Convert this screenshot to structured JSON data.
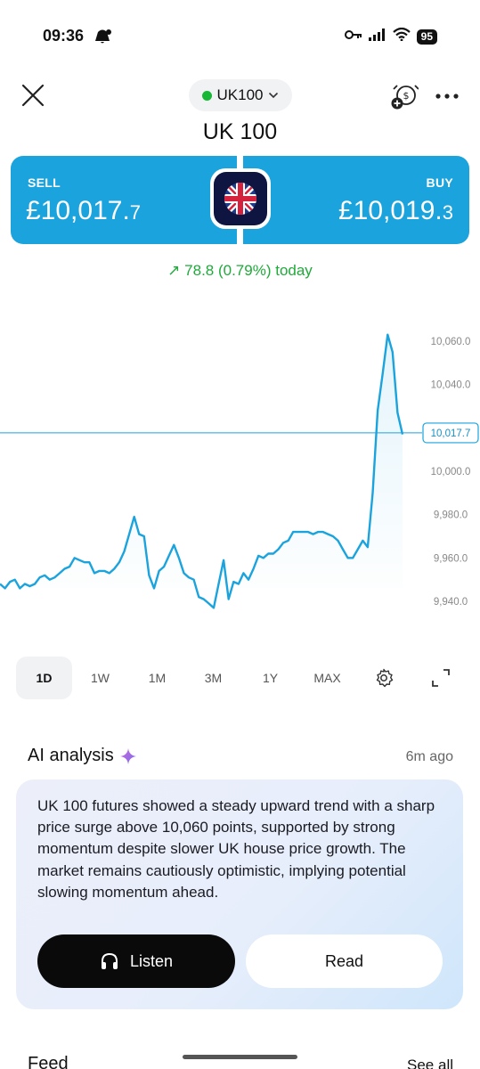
{
  "status_bar": {
    "time": "09:36",
    "battery": "95"
  },
  "header": {
    "ticker": "UK100",
    "title": "UK 100"
  },
  "trade": {
    "sell_label": "SELL",
    "sell_price_main": "£10,017.",
    "sell_price_small": "7",
    "buy_label": "BUY",
    "buy_price_main": "£10,019.",
    "buy_price_small": "3"
  },
  "change": {
    "arrow": "↗",
    "text": "78.8 (0.79%) today"
  },
  "chart_data": {
    "type": "line",
    "y_ticks": [
      "10,060.0",
      "10,040.0",
      "10,000.0",
      "9,980.0",
      "9,960.0",
      "9,940.0"
    ],
    "y_tick_values": [
      10060,
      10040,
      10000,
      9980,
      9960,
      9940
    ],
    "current_value": 10017.7,
    "current_label": "10,017.7",
    "values": [
      9948,
      9946,
      9949,
      9950,
      9946,
      9948,
      9947,
      9948,
      9951,
      9952,
      9950,
      9951,
      9953,
      9955,
      9956,
      9960,
      9959,
      9958,
      9958,
      9953,
      9954,
      9954,
      9953,
      9955,
      9958,
      9963,
      9971,
      9979,
      9971,
      9970,
      9952,
      9946,
      9954,
      9956,
      9961,
      9966,
      9960,
      9953,
      9951,
      9950,
      9942,
      9941,
      9939,
      9937,
      9948,
      9959,
      9941,
      9949,
      9948,
      9953,
      9950,
      9955,
      9961,
      9960,
      9962,
      9962,
      9964,
      9967,
      9968,
      9972,
      9972,
      9972,
      9972,
      9971,
      9972,
      9972,
      9971,
      9970,
      9968,
      9964,
      9960,
      9960,
      9964,
      9968,
      9965,
      9990,
      10028,
      10045,
      10063,
      10055,
      10027,
      10017
    ],
    "line_color": "#1aa3dd"
  },
  "ranges": {
    "items": [
      "1D",
      "1W",
      "1M",
      "3M",
      "1Y",
      "MAX"
    ],
    "active": "1D"
  },
  "ai": {
    "title": "AI analysis",
    "time": "6m ago",
    "text": "UK 100 futures showed a steady upward trend with a sharp price surge above 10,060 points, supported by strong momentum despite slower UK house price growth. The market remains cautiously optimistic, implying potential slowing momentum ahead.",
    "listen_label": "Listen",
    "read_label": "Read"
  },
  "feed": {
    "title": "Feed",
    "see_all": "See all"
  },
  "colors": {
    "accent": "#1aa3dd",
    "positive": "#1faa3a",
    "live_dot": "#17b835"
  }
}
